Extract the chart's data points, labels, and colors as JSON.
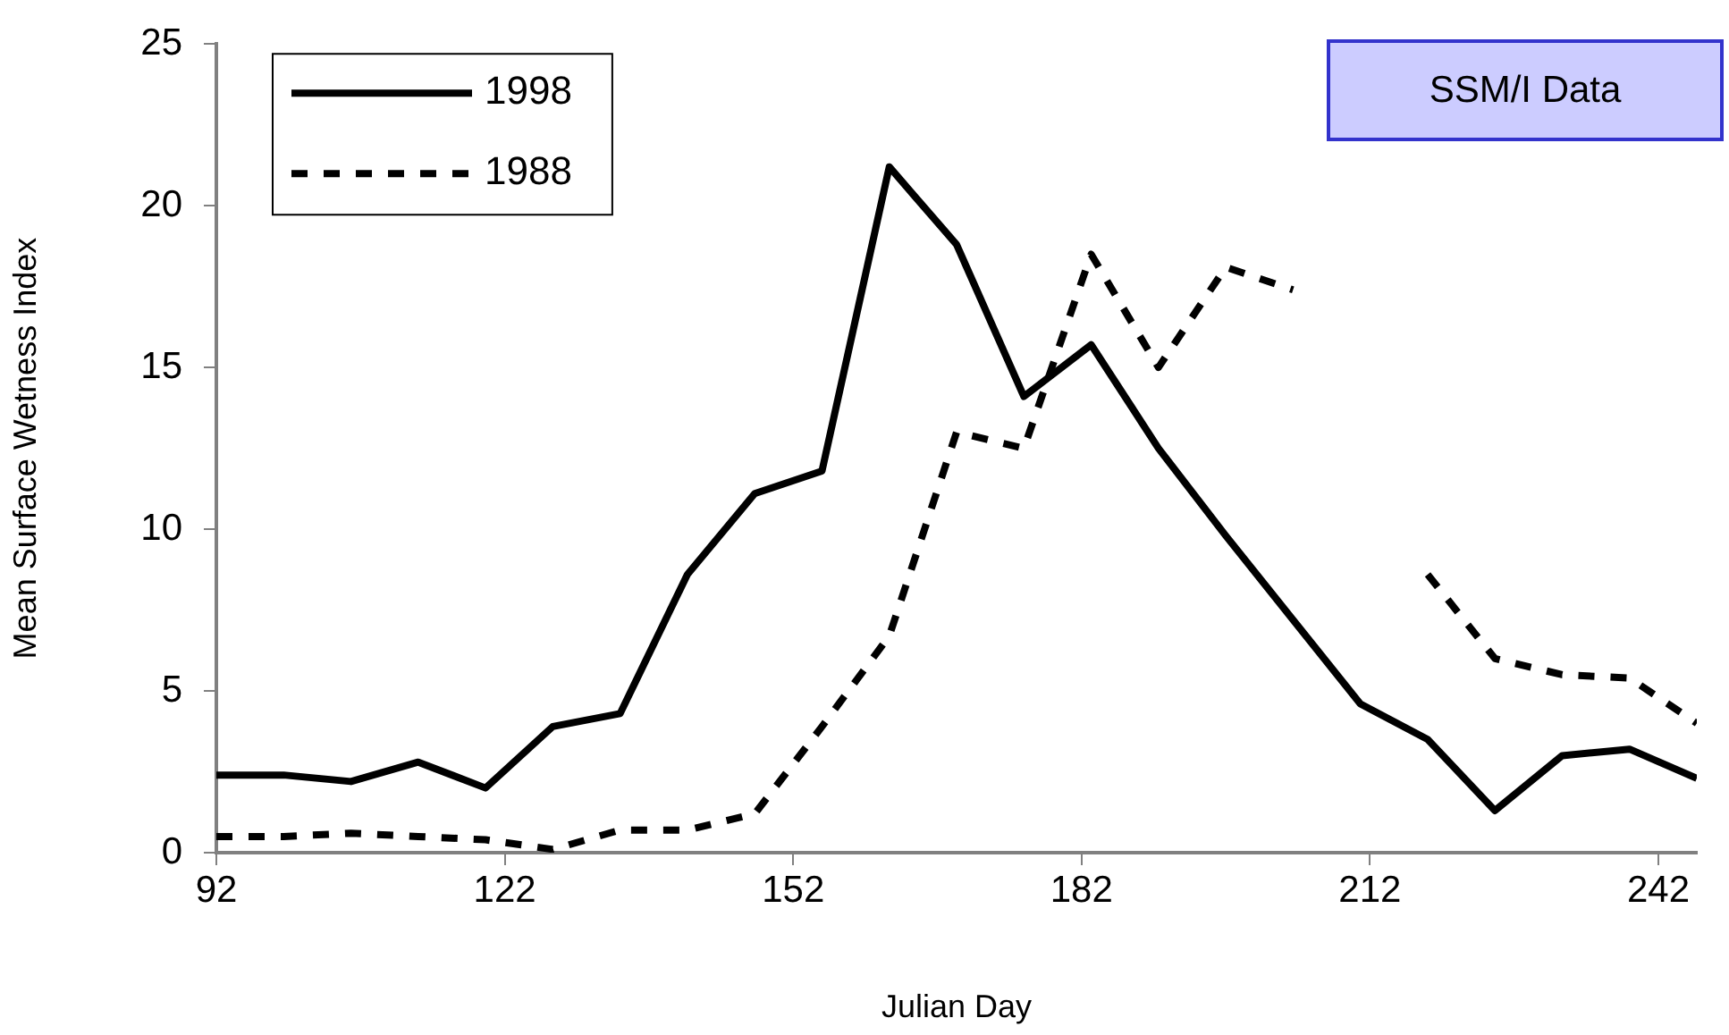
{
  "chart_data": {
    "type": "line",
    "xlabel": "Julian Day",
    "ylabel": "Mean Surface Wetness Index",
    "x": [
      92,
      99,
      106,
      113,
      120,
      127,
      134,
      141,
      148,
      155,
      162,
      169,
      176,
      183,
      190,
      197,
      204,
      211,
      218,
      225,
      232,
      239,
      246
    ],
    "series": [
      {
        "name": "1998",
        "color": "#000000",
        "line_style": "solid",
        "values": [
          2.4,
          2.4,
          2.2,
          2.8,
          2.0,
          3.9,
          4.3,
          8.6,
          11.1,
          11.8,
          21.2,
          18.8,
          14.1,
          15.7,
          12.5,
          9.8,
          7.2,
          4.6,
          3.5,
          1.3,
          3.0,
          3.2,
          2.3
        ]
      },
      {
        "name": "1988",
        "color": "#000000",
        "line_style": "dashed",
        "values": [
          0.5,
          0.5,
          0.6,
          0.5,
          0.4,
          0.1,
          0.7,
          0.7,
          1.2,
          3.9,
          6.7,
          13.0,
          12.5,
          18.5,
          15.0,
          18.1,
          17.4,
          null,
          8.6,
          6.0,
          5.5,
          5.4,
          4.0
        ]
      }
    ],
    "xlim": [
      92,
      246
    ],
    "xticks": [
      92,
      122,
      152,
      182,
      212,
      242
    ],
    "ylim": [
      0,
      25
    ],
    "yticks": [
      0,
      5,
      10,
      15,
      20,
      25
    ],
    "grid": false,
    "legend": "top left",
    "marker": "none",
    "annotations": [
      "SSM/I Data"
    ]
  }
}
